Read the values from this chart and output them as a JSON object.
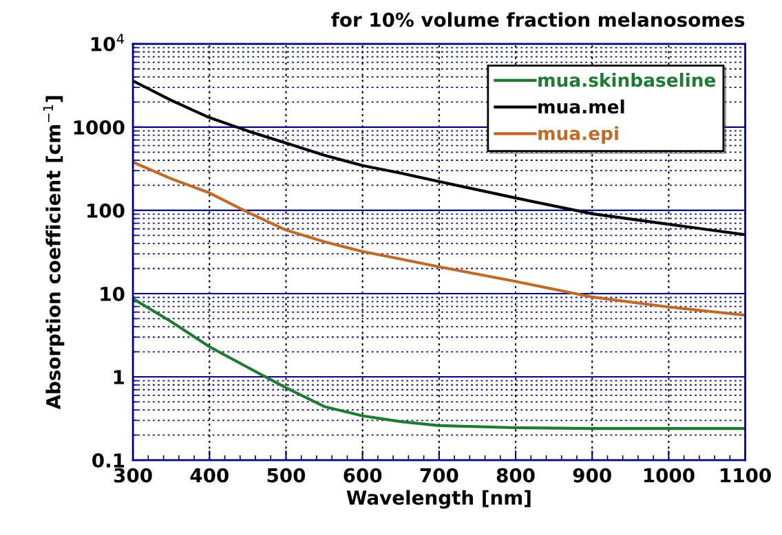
{
  "chart_data": {
    "type": "line",
    "title": "for 10% volume fraction melanosomes",
    "xlabel": "Wavelength [nm]",
    "ylabel": "Absorption coefficient [cm$^{−1}$]",
    "log": "y",
    "grid": true,
    "legend": "top right",
    "line_style": "solid",
    "marker": "none",
    "xlim": [
      300,
      1100
    ],
    "xticks": [
      300,
      {
        "value": 320,
        "label": null
      },
      {
        "value": 340,
        "label": null
      },
      {
        "value": 360,
        "label": null
      },
      {
        "value": 380,
        "label": null
      },
      400,
      {
        "value": 420,
        "label": null
      },
      {
        "value": 440,
        "label": null
      },
      {
        "value": 460,
        "label": null
      },
      {
        "value": 480,
        "label": null
      },
      500,
      {
        "value": 520,
        "label": null
      },
      {
        "value": 540,
        "label": null
      },
      {
        "value": 560,
        "label": null
      },
      {
        "value": 580,
        "label": null
      },
      600,
      {
        "value": 620,
        "label": null
      },
      {
        "value": 640,
        "label": null
      },
      {
        "value": 660,
        "label": null
      },
      {
        "value": 680,
        "label": null
      },
      700,
      {
        "value": 720,
        "label": null
      },
      {
        "value": 740,
        "label": null
      },
      {
        "value": 760,
        "label": null
      },
      {
        "value": 780,
        "label": null
      },
      800,
      {
        "value": 820,
        "label": null
      },
      {
        "value": 840,
        "label": null
      },
      {
        "value": 860,
        "label": null
      },
      {
        "value": 880,
        "label": null
      },
      900,
      {
        "value": 920,
        "label": null
      },
      {
        "value": 940,
        "label": null
      },
      {
        "value": 960,
        "label": null
      },
      {
        "value": 980,
        "label": null
      },
      1000,
      {
        "value": 1020,
        "label": null
      },
      {
        "value": 1040,
        "label": null
      },
      {
        "value": 1060,
        "label": null
      },
      {
        "value": 1080,
        "label": null
      },
      1100
    ],
    "ylim": [
      0.1,
      10000
    ],
    "yticks": [
      0.1,
      {
        "value": 0.2,
        "label": null
      },
      {
        "value": 0.3,
        "label": null
      },
      {
        "value": 0.4,
        "label": null
      },
      {
        "value": 0.5,
        "label": null
      },
      {
        "value": 0.6,
        "label": null
      },
      {
        "value": 0.7,
        "label": null
      },
      {
        "value": 0.8,
        "label": null
      },
      {
        "value": 0.9,
        "label": null
      },
      1,
      {
        "value": 2,
        "label": null
      },
      {
        "value": 3,
        "label": null
      },
      {
        "value": 4,
        "label": null
      },
      {
        "value": 5,
        "label": null
      },
      {
        "value": 6,
        "label": null
      },
      {
        "value": 7,
        "label": null
      },
      {
        "value": 8,
        "label": null
      },
      {
        "value": 9,
        "label": null
      },
      10,
      {
        "value": 20,
        "label": null
      },
      {
        "value": 30,
        "label": null
      },
      {
        "value": 40,
        "label": null
      },
      {
        "value": 50,
        "label": null
      },
      {
        "value": 60,
        "label": null
      },
      {
        "value": 70,
        "label": null
      },
      {
        "value": 80,
        "label": null
      },
      {
        "value": 90,
        "label": null
      },
      100,
      {
        "value": 200,
        "label": null
      },
      {
        "value": 300,
        "label": null
      },
      {
        "value": 400,
        "label": null
      },
      {
        "value": 500,
        "label": null
      },
      {
        "value": 600,
        "label": null
      },
      {
        "value": 700,
        "label": null
      },
      {
        "value": 800,
        "label": null
      },
      {
        "value": 900,
        "label": null
      },
      1000,
      {
        "value": 2000,
        "label": null
      },
      {
        "value": 3000,
        "label": null
      },
      {
        "value": 4000,
        "label": null
      },
      {
        "value": 5000,
        "label": null
      },
      {
        "value": 6000,
        "label": null
      },
      {
        "value": 7000,
        "label": null
      },
      {
        "value": 8000,
        "label": null
      },
      {
        "value": 9000,
        "label": null
      },
      {
        "value": 10000,
        "label": "10$^{4}$"
      }
    ],
    "x": [
      300,
      350,
      400,
      450,
      500,
      550,
      600,
      650,
      700,
      800,
      900,
      1000,
      1100
    ],
    "series": [
      {
        "name": "mua.skinbaseline",
        "color": "#1f7a33",
        "values": [
          8.7,
          4.6,
          2.3,
          1.3,
          0.74,
          0.44,
          0.34,
          0.29,
          0.26,
          0.245,
          0.24,
          0.24,
          0.24
        ]
      },
      {
        "name": "mua.mel",
        "color": "#000000",
        "values": [
          3600,
          2100,
          1300,
          900,
          645,
          460,
          345,
          280,
          222,
          141,
          91,
          68,
          51
        ]
      },
      {
        "name": "mua.epi",
        "color": "#c06a28",
        "values": [
          380,
          240,
          162,
          95,
          58,
          42,
          32,
          26,
          21,
          14,
          9.1,
          6.9,
          5.5
        ]
      }
    ]
  }
}
